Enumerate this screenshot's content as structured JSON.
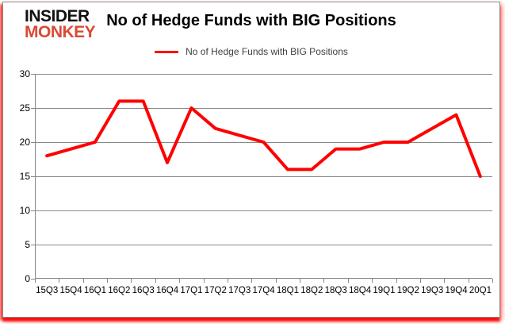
{
  "logo": {
    "line1": "INSIDER",
    "line2": "MONKEY"
  },
  "title": "No of Hedge Funds with BIG Positions",
  "legend": {
    "label": "No of Hedge Funds with BIG Positions"
  },
  "colors": {
    "line": "#ff0000",
    "grid": "#878787",
    "axis": "#878787",
    "logo_red": "#d84a35",
    "legend_text": "#404040",
    "frame_glow": "#ff0000"
  },
  "chart_data": {
    "type": "line",
    "categories": [
      "15Q3",
      "15Q4",
      "16Q1",
      "16Q2",
      "16Q3",
      "16Q4",
      "17Q1",
      "17Q2",
      "17Q3",
      "17Q4",
      "18Q1",
      "18Q2",
      "18Q3",
      "18Q4",
      "19Q1",
      "19Q2",
      "19Q3",
      "19Q4",
      "20Q1"
    ],
    "series": [
      {
        "name": "No of Hedge Funds with BIG Positions",
        "values": [
          18,
          19,
          20,
          26,
          26,
          17,
          25,
          22,
          21,
          20,
          16,
          16,
          19,
          19,
          20,
          20,
          22,
          24,
          15
        ]
      }
    ],
    "title": "No of Hedge Funds with BIG Positions",
    "xlabel": "",
    "ylabel": "",
    "ylim": [
      0,
      30
    ],
    "ytick_interval": 5,
    "grid": true,
    "legend_position": "top-center"
  }
}
